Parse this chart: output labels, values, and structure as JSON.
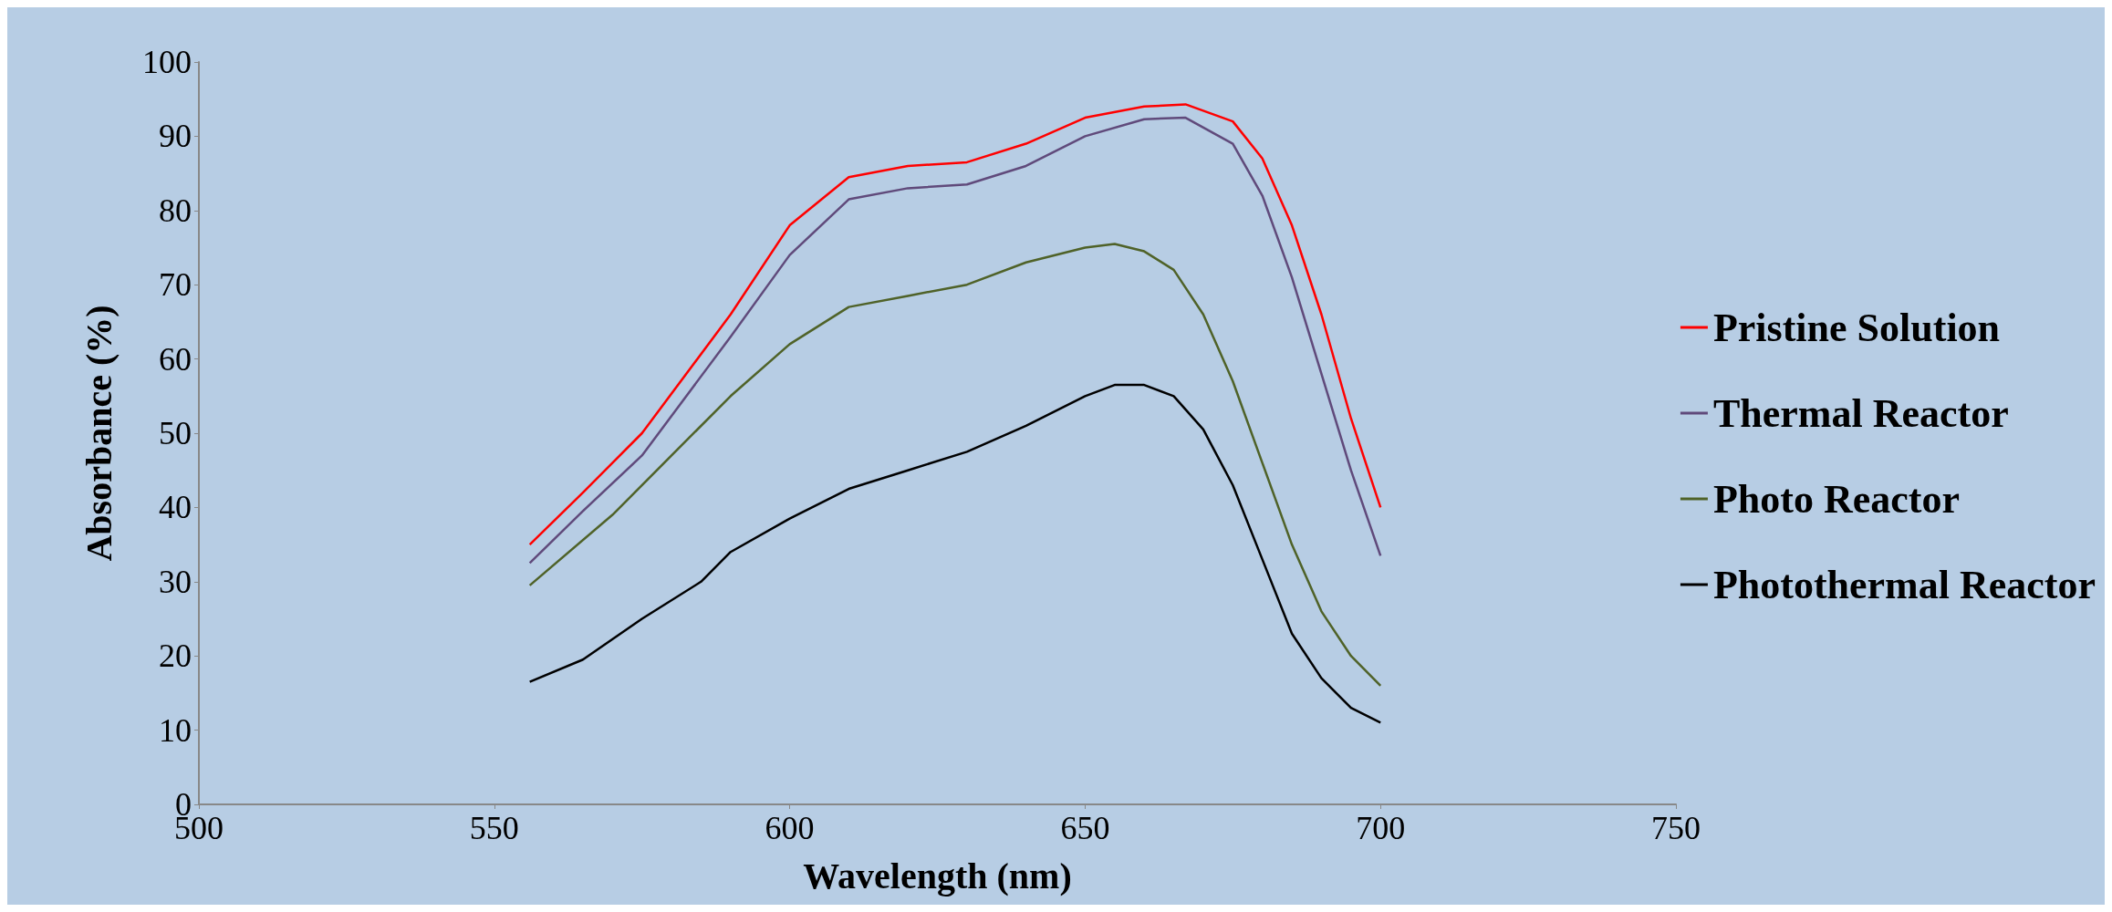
{
  "chart_data": {
    "type": "line",
    "xlabel": "Wavelength (nm)",
    "ylabel": "Absorbance (%)",
    "xlim": [
      500,
      750
    ],
    "xticks": [
      500,
      550,
      600,
      650,
      700,
      750
    ],
    "ylim": [
      0,
      100
    ],
    "yticks": [
      0,
      10,
      20,
      30,
      40,
      50,
      60,
      70,
      80,
      90,
      100
    ],
    "grid": false,
    "legend": "right",
    "marker": "none",
    "line_style": "solid",
    "series": [
      {
        "name": "Pristine Solution",
        "color": "#ff0000",
        "x": [
          556,
          565,
          575,
          590,
          600,
          610,
          620,
          630,
          640,
          650,
          660,
          667,
          675,
          680,
          685,
          690,
          695,
          700
        ],
        "values": [
          35,
          42,
          50,
          66,
          78,
          84.5,
          86,
          86.5,
          89,
          92.5,
          94,
          94.3,
          92,
          87,
          78,
          66,
          52,
          40
        ]
      },
      {
        "name": "Thermal Reactor",
        "color": "#604a7b",
        "x": [
          556,
          565,
          575,
          590,
          600,
          610,
          620,
          630,
          640,
          650,
          660,
          667,
          675,
          680,
          685,
          690,
          695,
          700
        ],
        "values": [
          32.5,
          39.5,
          47,
          63,
          74,
          81.5,
          83,
          83.5,
          86,
          90,
          92.3,
          92.5,
          89,
          82,
          71,
          58,
          45,
          33.5
        ]
      },
      {
        "name": "Photo Reactor",
        "color": "#4f6228",
        "x": [
          556,
          570,
          580,
          590,
          600,
          610,
          620,
          630,
          640,
          650,
          655,
          660,
          665,
          670,
          675,
          680,
          685,
          690,
          695,
          700
        ],
        "values": [
          29.5,
          39,
          47,
          55,
          62,
          67,
          68.5,
          70,
          73,
          75,
          75.5,
          74.5,
          72,
          66,
          57,
          46,
          35,
          26,
          20,
          16
        ]
      },
      {
        "name": "Photothermal Reactor",
        "color": "#000000",
        "x": [
          556,
          565,
          575,
          585,
          590,
          600,
          610,
          620,
          630,
          640,
          650,
          655,
          660,
          665,
          670,
          675,
          680,
          685,
          690,
          695,
          700
        ],
        "values": [
          16.5,
          19.5,
          25,
          30,
          34,
          38.5,
          42.5,
          45,
          47.5,
          51,
          55,
          56.5,
          56.5,
          55,
          50.5,
          43,
          33,
          23,
          17,
          13,
          11
        ]
      }
    ]
  }
}
